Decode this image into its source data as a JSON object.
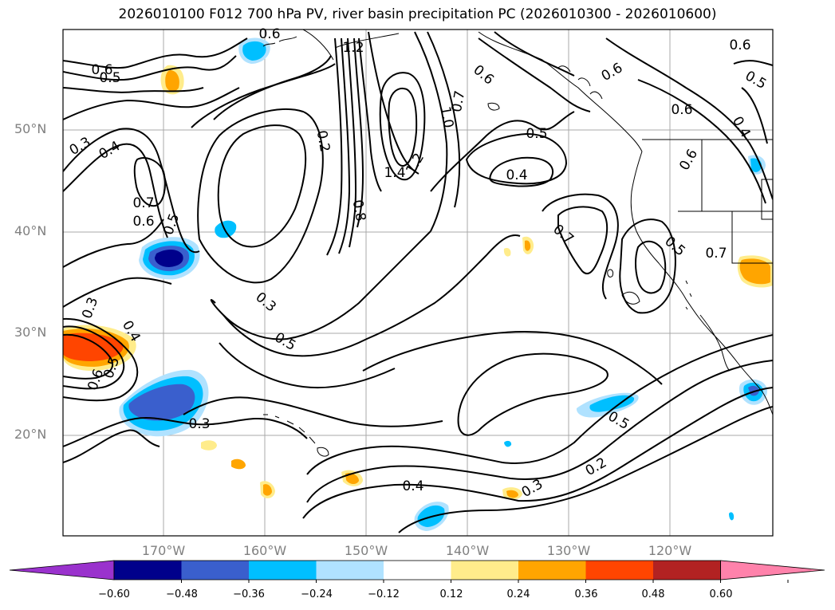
{
  "title": "2026010100 F012 700 hPa PV, river basin precipitation PC (2026010300 - 2026010600)",
  "lat_labels": [
    "50°N",
    "40°N",
    "30°N",
    "20°N"
  ],
  "lon_labels": [
    "170°W",
    "160°W",
    "150°W",
    "140°W",
    "130°W",
    "120°W"
  ],
  "contour_labels": [
    "0.6",
    "0.5",
    "0.6",
    "0.3",
    "0.4",
    "0.7",
    "0.6",
    "0.5",
    "0.2",
    "0.8",
    "0.3",
    "0.5",
    "1.2",
    "1.4",
    "1.2",
    "1.0",
    "0.7",
    "0.6",
    "0.5",
    "0.4",
    "0.6",
    "0.6",
    "0.5",
    "0.4",
    "0.6",
    "0.7",
    "0.5",
    "0.7",
    "0.3",
    "0.4",
    "0.5",
    "0.6",
    "0.3",
    "0.5",
    "0.4",
    "0.3",
    "0.2",
    "0.6"
  ],
  "colorbar": {
    "colors": [
      "#9a32cd",
      "#00008b",
      "#3a5fcd",
      "#00bfff",
      "#b0e2ff",
      "#ffffff",
      "#ffec8b",
      "#ffa500",
      "#ff4500",
      "#b22222",
      "#ff82ab"
    ],
    "ticks": [
      "−0.60",
      "−0.48",
      "−0.36",
      "−0.24",
      "−0.12",
      "0.12",
      "0.24",
      "0.36",
      "0.48",
      "0.60"
    ]
  },
  "colors": {
    "coast": "#000000",
    "grid": "#a9a9a9",
    "axis_label": "#808080"
  }
}
